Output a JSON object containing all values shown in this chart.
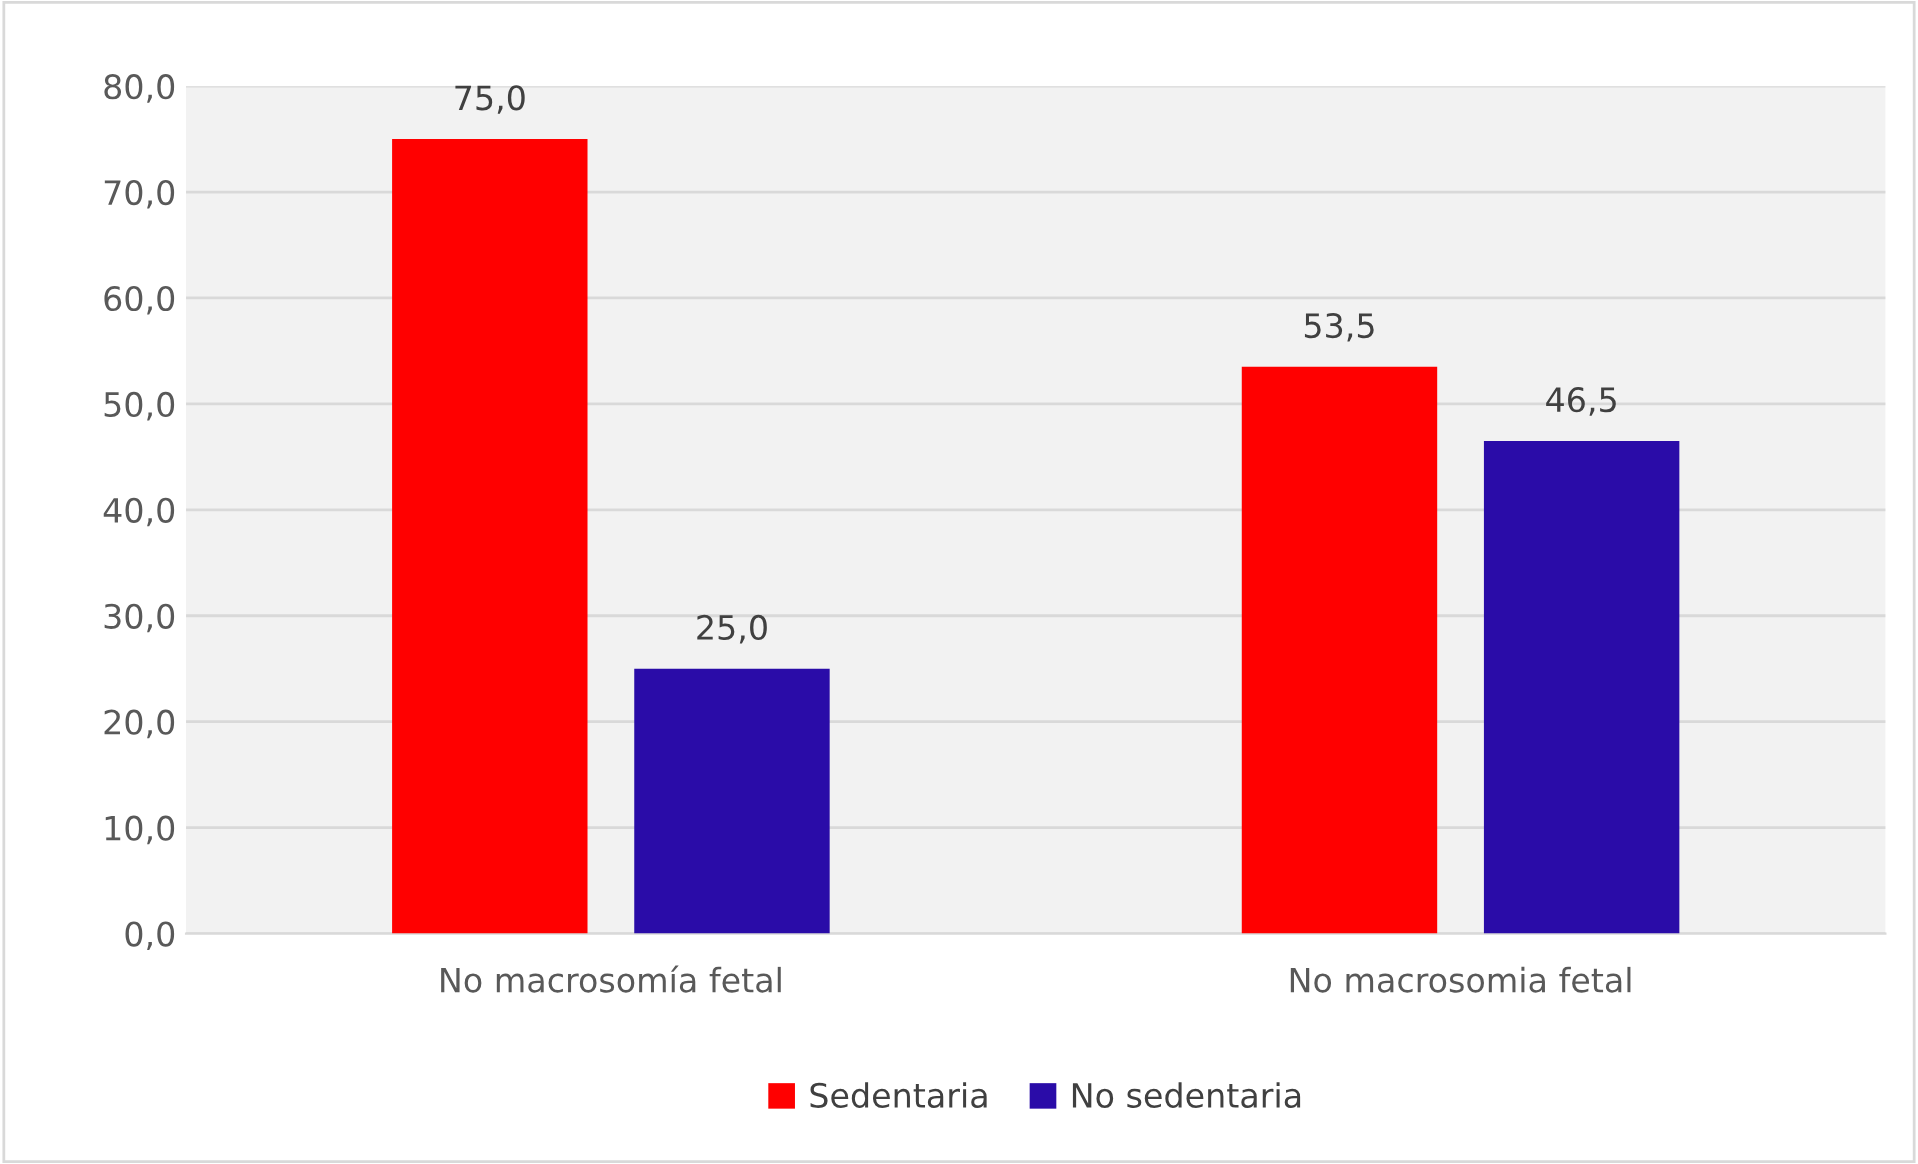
{
  "chart_data": {
    "type": "bar",
    "categories": [
      "No macrosomía fetal",
      "No macrosomia fetal"
    ],
    "series": [
      {
        "name": "Sedentaria",
        "color": "#ff0000",
        "values": [
          75.0,
          53.5
        ],
        "value_labels": [
          "75,0",
          "53,5"
        ]
      },
      {
        "name": "No sedentaria",
        "color": "#2a0ca8",
        "values": [
          25.0,
          46.5
        ],
        "value_labels": [
          "25,0",
          "46,5"
        ]
      }
    ],
    "ylim": [
      0,
      80
    ],
    "yticks": [
      {
        "value": 0,
        "label": "0,0"
      },
      {
        "value": 10,
        "label": "10,0"
      },
      {
        "value": 20,
        "label": "20,0"
      },
      {
        "value": 30,
        "label": "30,0"
      },
      {
        "value": 40,
        "label": "40,0"
      },
      {
        "value": 50,
        "label": "50,0"
      },
      {
        "value": 60,
        "label": "60,0"
      },
      {
        "value": 70,
        "label": "70,0"
      },
      {
        "value": 80,
        "label": "80,0"
      }
    ],
    "grid": "y",
    "legend": "bottom"
  }
}
